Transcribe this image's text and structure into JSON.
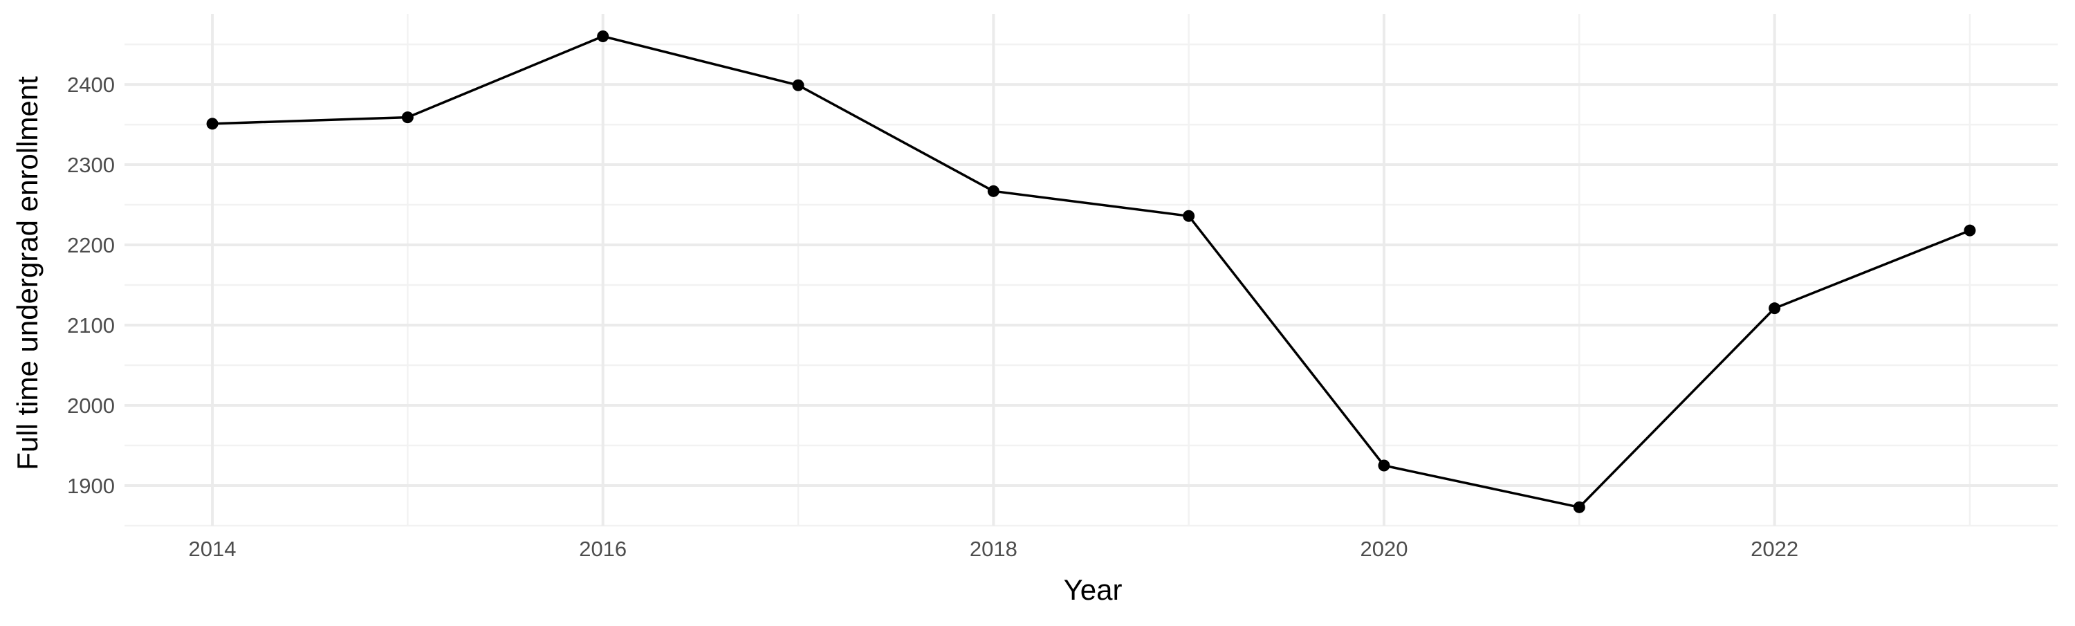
{
  "chart_data": {
    "type": "line",
    "title": "",
    "xlabel": "Year",
    "ylabel": "Full time undergrad enrollment",
    "x": [
      2014,
      2015,
      2016,
      2017,
      2018,
      2019,
      2020,
      2021,
      2022,
      2023
    ],
    "series": [
      {
        "values": [
          2351,
          2359,
          2460,
          2399,
          2267,
          2236,
          1925,
          1873,
          2121,
          2218
        ]
      }
    ],
    "xlim": [
      2013.55,
      2023.45
    ],
    "ylim": [
      1850,
      2488
    ],
    "x_ticks": [
      2014,
      2016,
      2018,
      2020,
      2022
    ],
    "x_tick_labels": [
      "2014",
      "2016",
      "2018",
      "2020",
      "2022"
    ],
    "y_ticks": [
      1900,
      2000,
      2100,
      2200,
      2300,
      2400
    ],
    "y_tick_labels": [
      "1900",
      "2000",
      "2100",
      "2200",
      "2300",
      "2400"
    ],
    "grid": true,
    "legend": "none",
    "colors": {
      "line": "#000000",
      "point": "#000000",
      "grid_major": "#ebebeb",
      "grid_minor": "#f2f2f2",
      "tick_text": "#4d4d4d",
      "background": "#ffffff"
    }
  }
}
